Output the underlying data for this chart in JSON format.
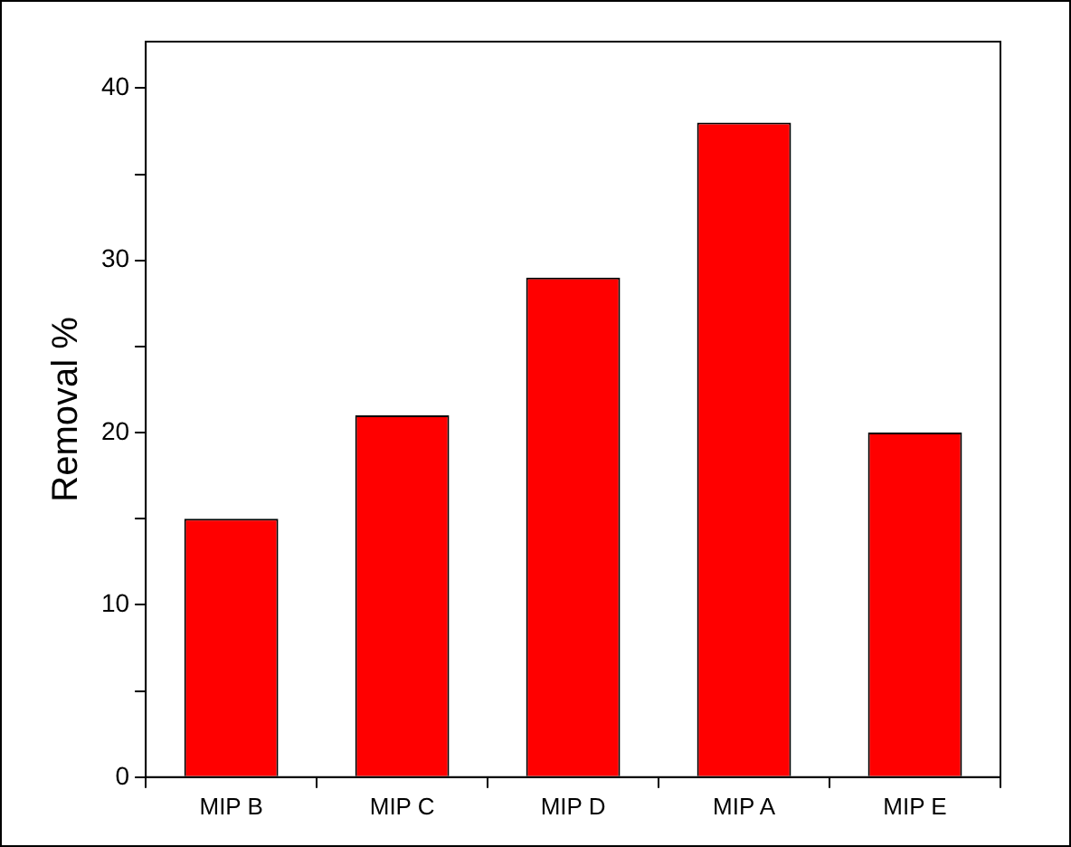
{
  "chart_data": {
    "type": "bar",
    "ylabel": "Removal %",
    "categories": [
      "MIP B",
      "MIP C",
      "MIP D",
      "MIP A",
      "MIP E"
    ],
    "values": [
      15,
      21,
      29,
      38,
      20
    ],
    "color": "#ff0000",
    "ylim": [
      0,
      42.7
    ],
    "yticks": [
      0,
      {
        "value": 5,
        "label": null
      },
      10,
      {
        "value": 15,
        "label": null
      },
      20,
      {
        "value": 25,
        "label": null
      },
      30,
      {
        "value": 35,
        "label": null
      },
      40
    ],
    "grid": false,
    "legend": false
  }
}
